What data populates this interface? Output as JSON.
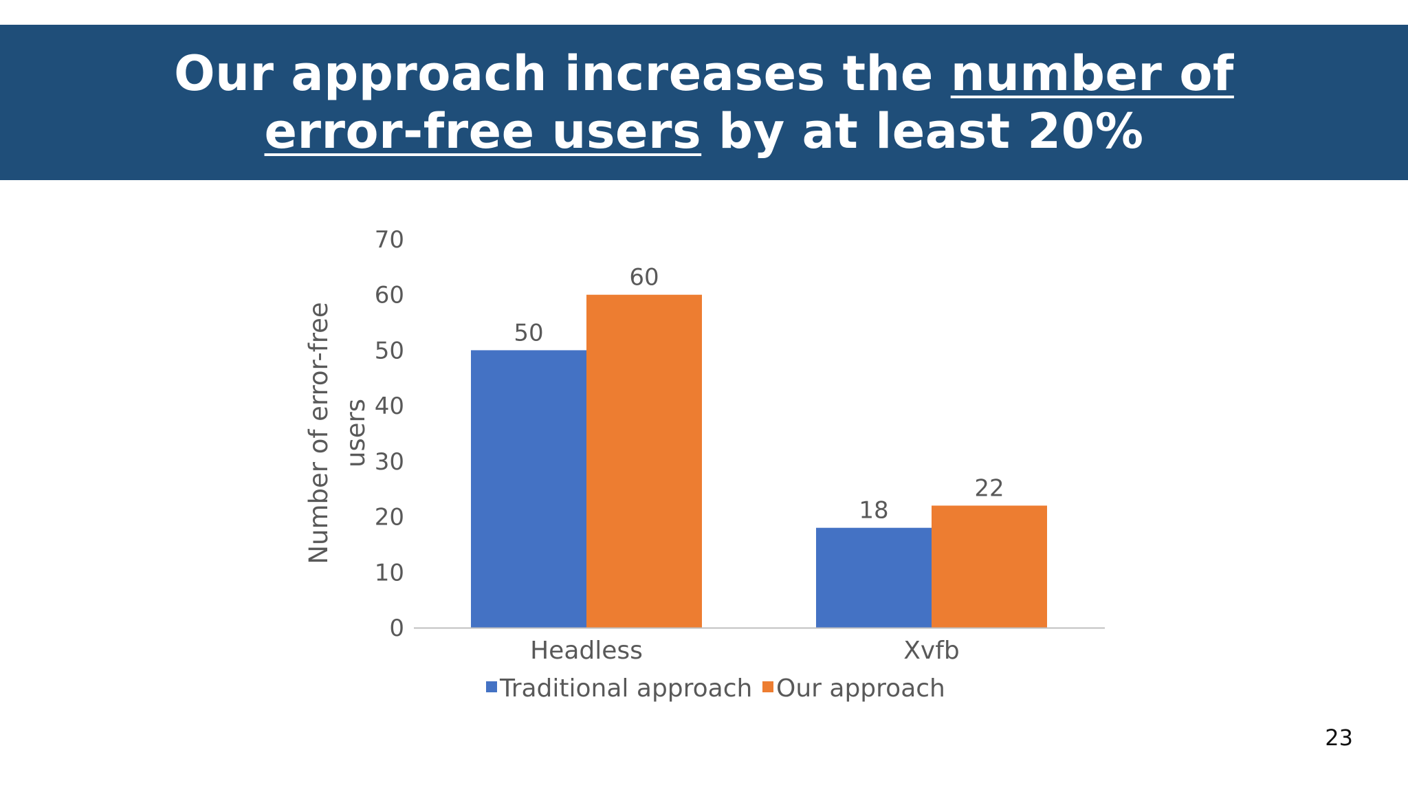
{
  "slide": {
    "title_line1_part1": "Our approach increases the ",
    "title_line1_part2": "number of",
    "title_line2_part1": "error-free users",
    "title_line2_part2": " by at least 20%",
    "page_number": "23",
    "banner_color": "#1f4e79"
  },
  "chart_data": {
    "type": "bar",
    "categories": [
      "Headless",
      "Xvfb"
    ],
    "series": [
      {
        "name": "Traditional approach",
        "values": [
          50,
          18
        ],
        "color": "#4472c4"
      },
      {
        "name": "Our approach",
        "values": [
          60,
          22
        ],
        "color": "#ed7d31"
      }
    ],
    "ylabel_line1": "Number of error-free",
    "ylabel_line2": "users",
    "ylim": [
      0,
      70
    ],
    "yticks": [
      0,
      10,
      20,
      30,
      40,
      50,
      60,
      70
    ],
    "grid": false,
    "legend_position": "bottom",
    "data_labels": true
  }
}
